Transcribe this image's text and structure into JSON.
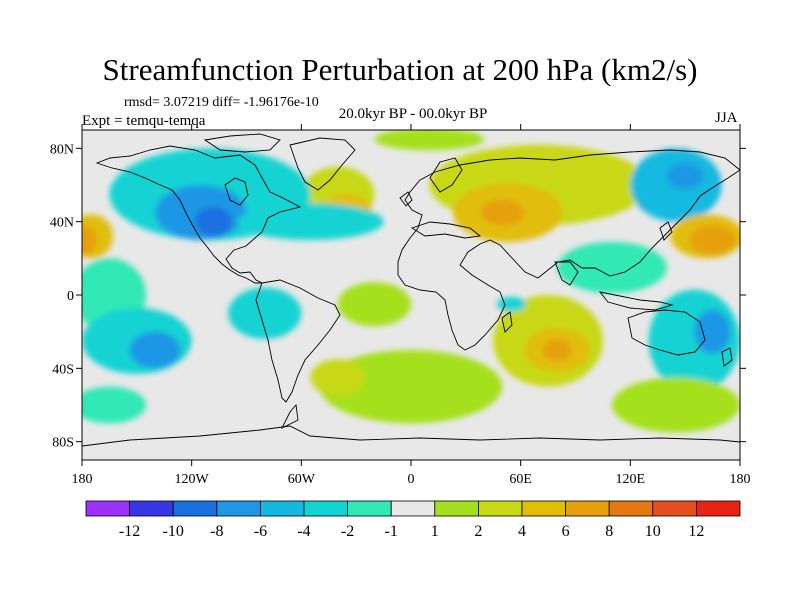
{
  "title": "Streamfunction Perturbation at 200 hPa (km2/s)",
  "stats_text": "rmsd= 3.07219 diff= -1.96176e-10",
  "expt_text": "Expt = temqu-temqa",
  "period_text": "20.0kyr BP - 00.0kyr BP",
  "season_text": "JJA",
  "map": {
    "projection": "cylindrical-equidistant",
    "lon_range": [
      -180,
      180
    ],
    "lat_range": [
      -90,
      90
    ],
    "x_ticks": [
      {
        "lon": -180,
        "label": "180"
      },
      {
        "lon": -120,
        "label": "120W"
      },
      {
        "lon": -60,
        "label": "60W"
      },
      {
        "lon": 0,
        "label": "0"
      },
      {
        "lon": 60,
        "label": "60E"
      },
      {
        "lon": 120,
        "label": "120E"
      },
      {
        "lon": 180,
        "label": "180"
      }
    ],
    "y_ticks": [
      {
        "lat": 80,
        "label": "80N"
      },
      {
        "lat": 40,
        "label": "40N"
      },
      {
        "lat": 0,
        "label": "0"
      },
      {
        "lat": -40,
        "label": "40S"
      },
      {
        "lat": -80,
        "label": "80S"
      }
    ],
    "background_color": "#e8e8e8",
    "coastline_color": "#000000"
  },
  "colorbar": {
    "colors": [
      "#9b30ff",
      "#3737e6",
      "#1c6fe0",
      "#1f97e6",
      "#14b9e0",
      "#14d3d3",
      "#33e8b5",
      "#e8e8e8",
      "#a5e01e",
      "#c8d814",
      "#e1be0a",
      "#e6a00f",
      "#e67814",
      "#e6501e",
      "#e62314"
    ],
    "labels": [
      "-12",
      "-10",
      "-8",
      "-6",
      "-4",
      "-2",
      "-1",
      "1",
      "2",
      "4",
      "6",
      "8",
      "10",
      "12"
    ]
  },
  "blobs": [
    {
      "lon": 70,
      "lat": 60,
      "rx": 60,
      "ry": 22,
      "value": 2.5
    },
    {
      "lon": -40,
      "lat": 55,
      "rx": 20,
      "ry": 15,
      "value": 3.5
    },
    {
      "lon": 53,
      "lat": 45,
      "rx": 30,
      "ry": 16,
      "value": 5
    },
    {
      "lon": 50,
      "lat": 45,
      "rx": 12,
      "ry": 7,
      "value": 6.5
    },
    {
      "lon": -35,
      "lat": 45,
      "rx": 14,
      "ry": 10,
      "value": 5
    },
    {
      "lon": 10,
      "lat": 85,
      "rx": 30,
      "ry": 6,
      "value": 1.5
    },
    {
      "lon": -110,
      "lat": 55,
      "rx": 55,
      "ry": 25,
      "value": -3
    },
    {
      "lon": -115,
      "lat": 45,
      "rx": 25,
      "ry": 15,
      "value": -6
    },
    {
      "lon": -108,
      "lat": 40,
      "rx": 10,
      "ry": 8,
      "value": -8.5
    },
    {
      "lon": -55,
      "lat": 40,
      "rx": 40,
      "ry": 10,
      "value": -2
    },
    {
      "lon": 145,
      "lat": 60,
      "rx": 25,
      "ry": 20,
      "value": -4
    },
    {
      "lon": 150,
      "lat": 65,
      "rx": 10,
      "ry": 7,
      "value": -7
    },
    {
      "lon": 110,
      "lat": 15,
      "rx": 30,
      "ry": 14,
      "value": -1.5
    },
    {
      "lon": 162,
      "lat": 32,
      "rx": 20,
      "ry": 12,
      "value": 5
    },
    {
      "lon": 165,
      "lat": 30,
      "rx": 13,
      "ry": 8,
      "value": 8
    },
    {
      "lon": -175,
      "lat": 32,
      "rx": 12,
      "ry": 12,
      "value": 6
    },
    {
      "lon": -178,
      "lat": 30,
      "rx": 6,
      "ry": 8,
      "value": 8
    },
    {
      "lon": -165,
      "lat": 0,
      "rx": 20,
      "ry": 20,
      "value": -1.5
    },
    {
      "lon": -150,
      "lat": -25,
      "rx": 30,
      "ry": 18,
      "value": -3.5
    },
    {
      "lon": -140,
      "lat": -30,
      "rx": 14,
      "ry": 10,
      "value": -6
    },
    {
      "lon": -80,
      "lat": -10,
      "rx": 20,
      "ry": 14,
      "value": -3
    },
    {
      "lon": -20,
      "lat": -5,
      "rx": 20,
      "ry": 12,
      "value": 1.5
    },
    {
      "lon": 0,
      "lat": -50,
      "rx": 50,
      "ry": 20,
      "value": 2
    },
    {
      "lon": -40,
      "lat": -45,
      "rx": 15,
      "ry": 10,
      "value": 3.5
    },
    {
      "lon": 75,
      "lat": -25,
      "rx": 30,
      "ry": 25,
      "value": 3
    },
    {
      "lon": 80,
      "lat": -30,
      "rx": 18,
      "ry": 12,
      "value": 5
    },
    {
      "lon": 80,
      "lat": -30,
      "rx": 8,
      "ry": 6,
      "value": 7
    },
    {
      "lon": 55,
      "lat": -5,
      "rx": 8,
      "ry": 4,
      "value": -2
    },
    {
      "lon": 155,
      "lat": -25,
      "rx": 25,
      "ry": 28,
      "value": -3
    },
    {
      "lon": 165,
      "lat": -20,
      "rx": 10,
      "ry": 12,
      "value": -6
    },
    {
      "lon": 145,
      "lat": -60,
      "rx": 35,
      "ry": 15,
      "value": 2
    },
    {
      "lon": -165,
      "lat": -60,
      "rx": 20,
      "ry": 10,
      "value": -1.5
    }
  ]
}
